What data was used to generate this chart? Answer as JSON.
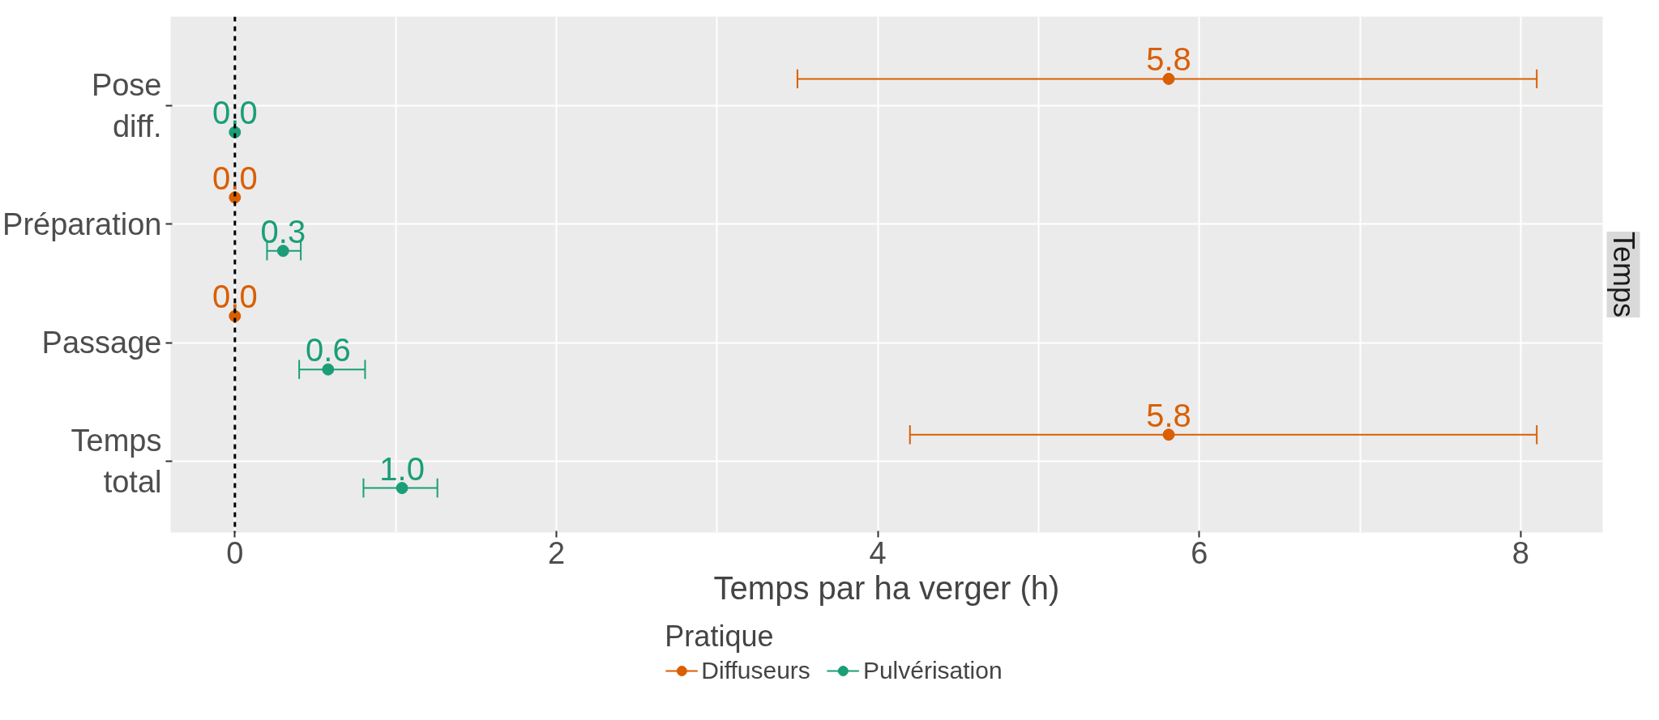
{
  "chart_data": {
    "type": "scatter",
    "orientation": "horizontal",
    "xlabel": "Temps par ha verger (h)",
    "legend_title": "Pratique",
    "legend": "bottom",
    "grid": true,
    "marker": "circle",
    "categories": [
      "Pose diff.",
      "Préparation",
      "Passage",
      "Temps total"
    ],
    "xlim": [
      -0.4,
      8.51
    ],
    "xticks": [
      0,
      2,
      4,
      6,
      8
    ],
    "ref_lines": [
      {
        "axis": "x",
        "value": 0,
        "color": "#000000",
        "line_style": "dashed"
      }
    ],
    "annotations": [
      "Temps"
    ],
    "series": [
      {
        "name": "Diffuseurs",
        "color": "#d95f02",
        "values": [
          5.81,
          0.0,
          0.0,
          5.81
        ],
        "errors": [
          [
            3.5,
            8.1
          ],
          null,
          null,
          [
            4.2,
            8.1
          ]
        ],
        "value_labels": [
          "5.8",
          "0.0",
          "0.0",
          "5.8"
        ]
      },
      {
        "name": "Pulvérisation",
        "color": "#1b9e77",
        "values": [
          0.0,
          0.3,
          0.58,
          1.04
        ],
        "errors": [
          null,
          [
            0.2,
            0.41
          ],
          [
            0.4,
            0.81
          ],
          [
            0.8,
            1.26
          ]
        ],
        "value_labels": [
          "0.0",
          "0.3",
          "0.6",
          "1.0"
        ]
      }
    ]
  }
}
